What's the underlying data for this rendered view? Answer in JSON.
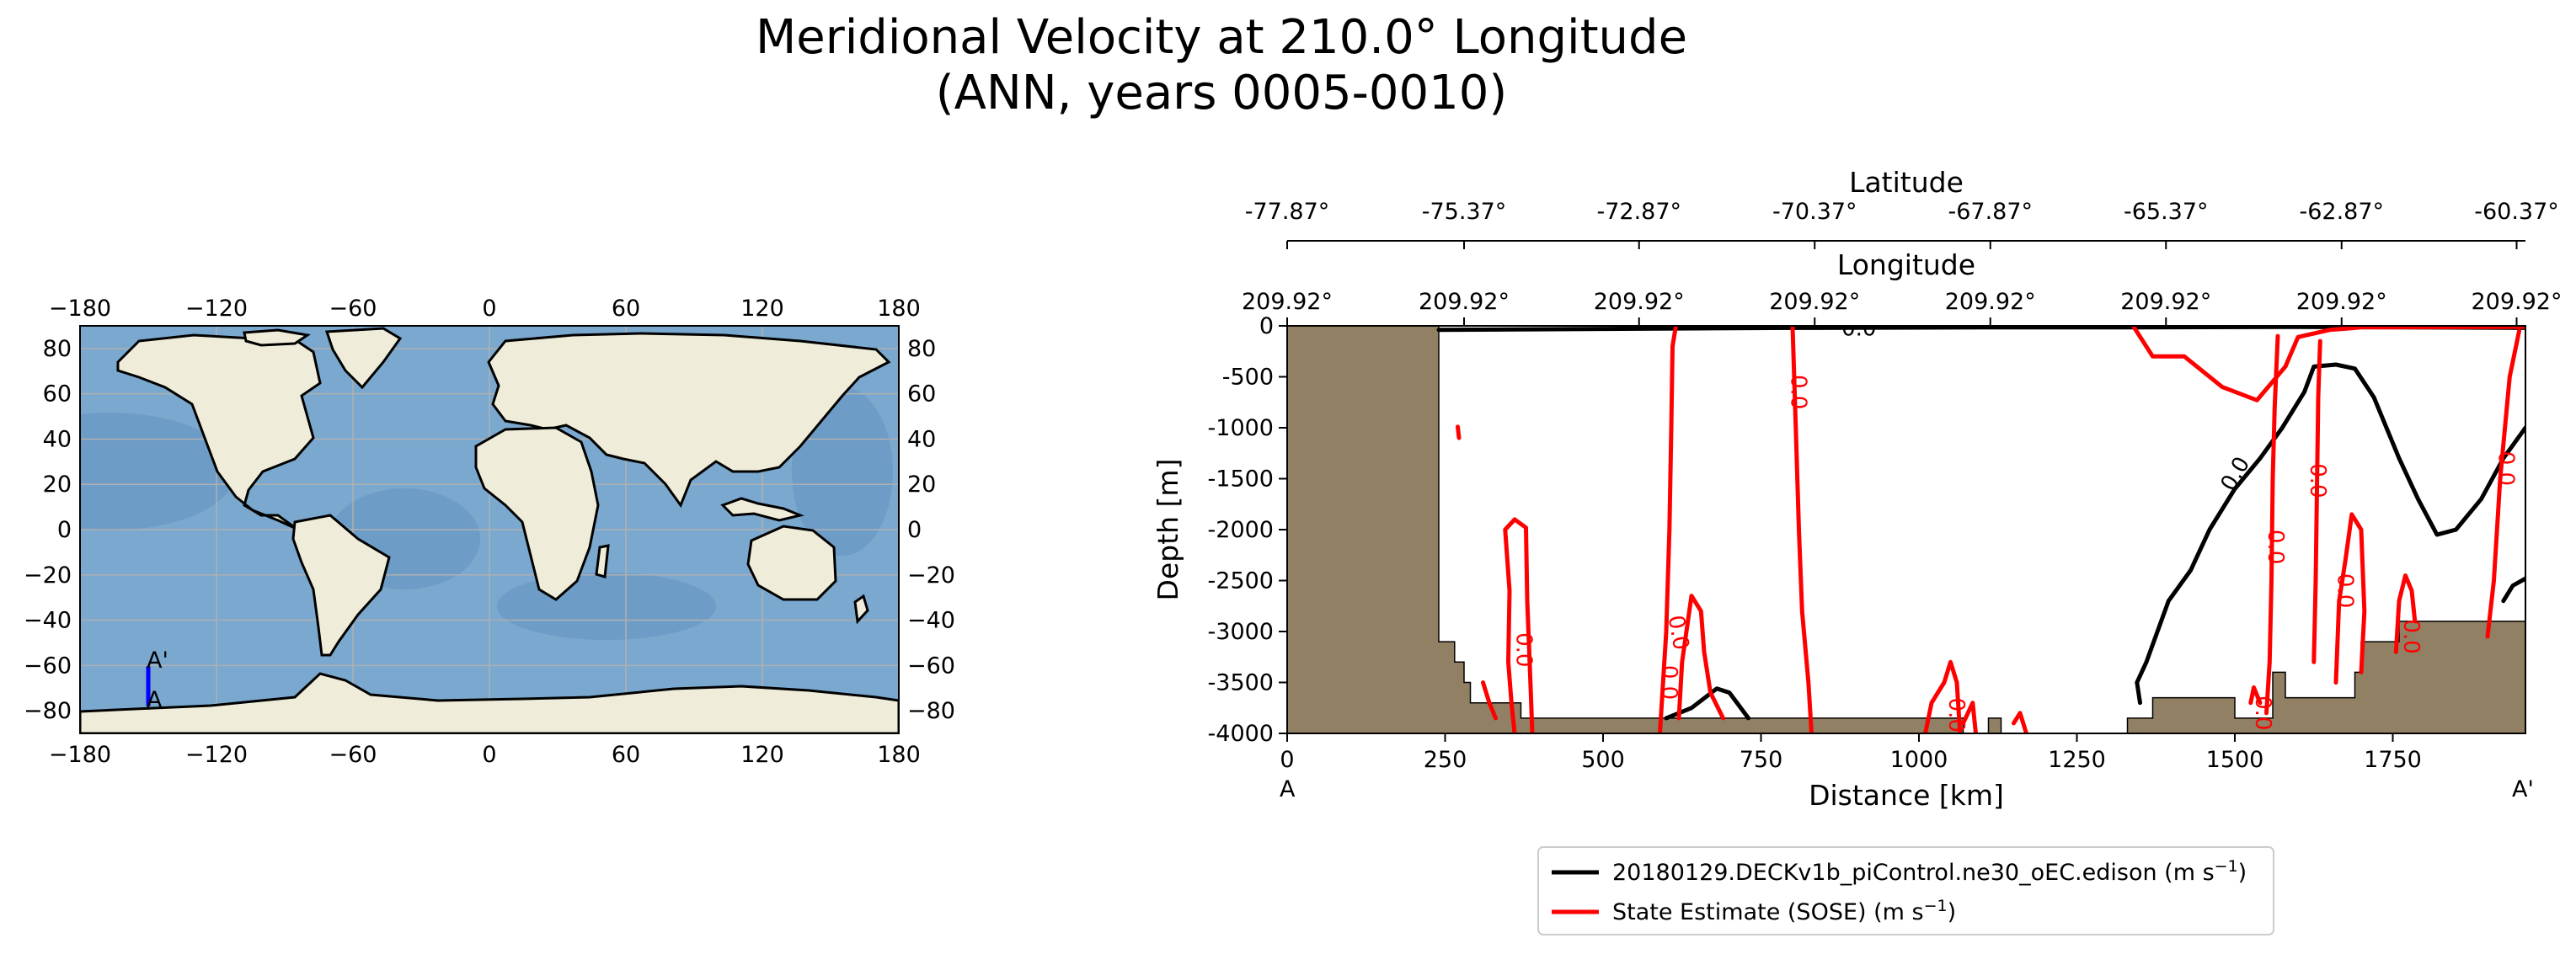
{
  "title": {
    "line1": "Meridional Velocity at 210.0° Longitude",
    "line2": "(ANN, years 0005-0010)"
  },
  "colors": {
    "land": "#efedd9",
    "ocean": "#7aa8cf",
    "ocean_deep": "#5f8fbe",
    "grid": "#b0b0b0",
    "transect": "#0000ff",
    "bathymetry": "#918064",
    "model_contour": "#000000",
    "obs_contour": "#ff0000"
  },
  "map": {
    "lon_ticks": [
      "−180",
      "−120",
      "−60",
      "0",
      "60",
      "120",
      "180"
    ],
    "lat_ticks": [
      "80",
      "60",
      "40",
      "20",
      "0",
      "−20",
      "−40",
      "−60",
      "−80"
    ],
    "lon_values": [
      -180,
      -120,
      -60,
      0,
      60,
      120,
      180
    ],
    "lat_values": [
      80,
      60,
      40,
      20,
      0,
      -20,
      -40,
      -60,
      -80
    ],
    "lon_range": [
      -180,
      180
    ],
    "lat_range": [
      -90,
      90
    ],
    "transect": {
      "lon": -150,
      "lat_start": -77.87,
      "lat_end": -60.37,
      "label_start": "A",
      "label_end": "A'"
    }
  },
  "chart_data": {
    "type": "line",
    "title": "Meridional Velocity at 210.0° Longitude (ANN, years 0005-0010)",
    "xlabel": "Distance [km]",
    "ylabel": "Depth [m]",
    "xlim": [
      0,
      1960
    ],
    "ylim": [
      -4000,
      0
    ],
    "x_ticks": [
      "0",
      "250",
      "500",
      "750",
      "1000",
      "1250",
      "1500",
      "1750"
    ],
    "x_tick_values": [
      0,
      250,
      500,
      750,
      1000,
      1250,
      1500,
      1750
    ],
    "y_ticks": [
      "0",
      "-500",
      "-1000",
      "-1500",
      "-2000",
      "-2500",
      "-3000",
      "-3500",
      "-4000"
    ],
    "y_tick_values": [
      0,
      -500,
      -1000,
      -1500,
      -2000,
      -2500,
      -3000,
      -3500,
      -4000
    ],
    "end_labels": {
      "start": "A",
      "end": "A'"
    },
    "latitude_axis": {
      "label": "Latitude",
      "ticks": [
        "-77.87°",
        "-75.37°",
        "-72.87°",
        "-70.37°",
        "-67.87°",
        "-65.37°",
        "-62.87°",
        "-60.37°"
      ]
    },
    "longitude_axis": {
      "label": "Longitude",
      "ticks": [
        "209.92°",
        "209.92°",
        "209.92°",
        "209.92°",
        "209.92°",
        "209.92°",
        "209.92°",
        "209.92°"
      ]
    },
    "secondary_tick_positions_km": [
      0,
      280,
      557,
      835,
      1113,
      1391,
      1669,
      1946
    ],
    "bathymetry": [
      [
        0,
        0
      ],
      [
        240,
        0
      ],
      [
        240,
        -3100
      ],
      [
        265,
        -3100
      ],
      [
        265,
        -3300
      ],
      [
        280,
        -3300
      ],
      [
        280,
        -3500
      ],
      [
        290,
        -3500
      ],
      [
        290,
        -3700
      ],
      [
        370,
        -3700
      ],
      [
        370,
        -3850
      ],
      [
        1070,
        -3850
      ],
      [
        1070,
        -4000
      ],
      [
        1110,
        -4000
      ],
      [
        1110,
        -3850
      ],
      [
        1130,
        -3850
      ],
      [
        1130,
        -4000
      ],
      [
        1330,
        -4000
      ],
      [
        1330,
        -3850
      ],
      [
        1370,
        -3850
      ],
      [
        1370,
        -3650
      ],
      [
        1500,
        -3650
      ],
      [
        1500,
        -3850
      ],
      [
        1560,
        -3850
      ],
      [
        1560,
        -3400
      ],
      [
        1580,
        -3400
      ],
      [
        1580,
        -3650
      ],
      [
        1690,
        -3650
      ],
      [
        1690,
        -3400
      ],
      [
        1700,
        -3400
      ],
      [
        1700,
        -3100
      ],
      [
        1760,
        -3100
      ],
      [
        1760,
        -2900
      ],
      [
        1960,
        -2900
      ],
      [
        1960,
        -4000
      ],
      [
        0,
        -4000
      ]
    ],
    "contour_label": "0.0",
    "series": [
      {
        "name": "20180129.DECKv1b_piControl.ne30_oEC.edison (m s⁻¹)",
        "legend_prefix": "20180129.DECKv1b_piControl.ne30_oEC.edison (m s",
        "legend_sup": "−1",
        "legend_suffix": ")",
        "color": "#000000",
        "lines": [
          [
            [
              240,
              -40
            ],
            [
              500,
              -30
            ],
            [
              800,
              -20
            ],
            [
              1100,
              -15
            ],
            [
              1300,
              -15
            ],
            [
              1600,
              -10
            ],
            [
              1960,
              -20
            ]
          ],
          [
            [
              1350,
              -3700
            ],
            [
              1345,
              -3500
            ],
            [
              1360,
              -3300
            ],
            [
              1395,
              -2700
            ],
            [
              1430,
              -2400
            ],
            [
              1460,
              -2000
            ],
            [
              1500,
              -1600
            ],
            [
              1540,
              -1300
            ],
            [
              1575,
              -1000
            ],
            [
              1610,
              -650
            ],
            [
              1625,
              -400
            ],
            [
              1660,
              -380
            ],
            [
              1690,
              -420
            ],
            [
              1720,
              -700
            ],
            [
              1760,
              -1300
            ],
            [
              1790,
              -1700
            ],
            [
              1820,
              -2050
            ],
            [
              1850,
              -2000
            ],
            [
              1890,
              -1700
            ],
            [
              1925,
              -1300
            ],
            [
              1960,
              -1000
            ]
          ],
          [
            [
              1925,
              -2700
            ],
            [
              1940,
              -2550
            ],
            [
              1960,
              -2480
            ]
          ],
          [
            [
              600,
              -3850
            ],
            [
              640,
              -3750
            ],
            [
              680,
              -3560
            ],
            [
              700,
              -3600
            ],
            [
              730,
              -3850
            ]
          ]
        ]
      },
      {
        "name": "State Estimate (SOSE) (m s⁻¹)",
        "legend_prefix": "State Estimate (SOSE) (m s",
        "legend_sup": "−1",
        "legend_suffix": ")",
        "color": "#ff0000",
        "lines": [
          [
            [
              590,
              -4000
            ],
            [
              600,
              -3000
            ],
            [
              605,
              -2000
            ],
            [
              608,
              -1000
            ],
            [
              610,
              -200
            ],
            [
              615,
              -10
            ]
          ],
          [
            [
              800,
              -10
            ],
            [
              805,
              -1000
            ],
            [
              810,
              -2000
            ],
            [
              815,
              -2800
            ],
            [
              825,
              -3500
            ],
            [
              830,
              -4000
            ]
          ],
          [
            [
              360,
              -4000
            ],
            [
              355,
              -3700
            ],
            [
              350,
              -3300
            ],
            [
              352,
              -2600
            ],
            [
              345,
              -2000
            ],
            [
              360,
              -1900
            ],
            [
              378,
              -1980
            ],
            [
              380,
              -2700
            ],
            [
              385,
              -3500
            ],
            [
              388,
              -4000
            ]
          ],
          [
            [
              620,
              -3850
            ],
            [
              625,
              -3300
            ],
            [
              640,
              -2650
            ],
            [
              655,
              -2800
            ],
            [
              660,
              -3200
            ],
            [
              670,
              -3600
            ],
            [
              690,
              -3850
            ]
          ],
          [
            [
              1010,
              -4000
            ],
            [
              1020,
              -3700
            ],
            [
              1040,
              -3500
            ],
            [
              1050,
              -3300
            ],
            [
              1060,
              -3500
            ],
            [
              1065,
              -4000
            ]
          ],
          [
            [
              1070,
              -3900
            ],
            [
              1085,
              -3700
            ],
            [
              1090,
              -4000
            ]
          ],
          [
            [
              1150,
              -3900
            ],
            [
              1160,
              -3800
            ],
            [
              1170,
              -4000
            ]
          ],
          [
            [
              1550,
              -3800
            ],
            [
              1555,
              -3300
            ],
            [
              1558,
              -2500
            ],
            [
              1560,
              -1500
            ],
            [
              1563,
              -800
            ],
            [
              1568,
              -100
            ]
          ],
          [
            [
              1625,
              -3300
            ],
            [
              1628,
              -2500
            ],
            [
              1630,
              -1600
            ],
            [
              1632,
              -700
            ],
            [
              1635,
              -150
            ]
          ],
          [
            [
              1660,
              -3500
            ],
            [
              1665,
              -2700
            ],
            [
              1675,
              -2300
            ],
            [
              1685,
              -1850
            ],
            [
              1700,
              -2000
            ],
            [
              1705,
              -2800
            ],
            [
              1700,
              -3400
            ]
          ],
          [
            [
              1755,
              -3200
            ],
            [
              1760,
              -2700
            ],
            [
              1770,
              -2450
            ],
            [
              1780,
              -2600
            ],
            [
              1785,
              -2900
            ]
          ],
          [
            [
              1900,
              -3050
            ],
            [
              1910,
              -2500
            ],
            [
              1920,
              -1500
            ],
            [
              1935,
              -500
            ],
            [
              1950,
              -50
            ]
          ],
          [
            [
              1340,
              -10
            ],
            [
              1370,
              -300
            ],
            [
              1420,
              -300
            ],
            [
              1480,
              -600
            ],
            [
              1535,
              -730
            ],
            [
              1580,
              -400
            ],
            [
              1600,
              -110
            ],
            [
              1650,
              -40
            ],
            [
              1700,
              -15
            ],
            [
              1960,
              -10
            ]
          ],
          [
            [
              1525,
              -3700
            ],
            [
              1530,
              -3550
            ],
            [
              1540,
              -3700
            ]
          ],
          [
            [
              310,
              -3500
            ],
            [
              320,
              -3700
            ],
            [
              330,
              -3850
            ]
          ],
          [
            [
              270,
              -990
            ],
            [
              272,
              -1100
            ]
          ]
        ]
      }
    ]
  }
}
